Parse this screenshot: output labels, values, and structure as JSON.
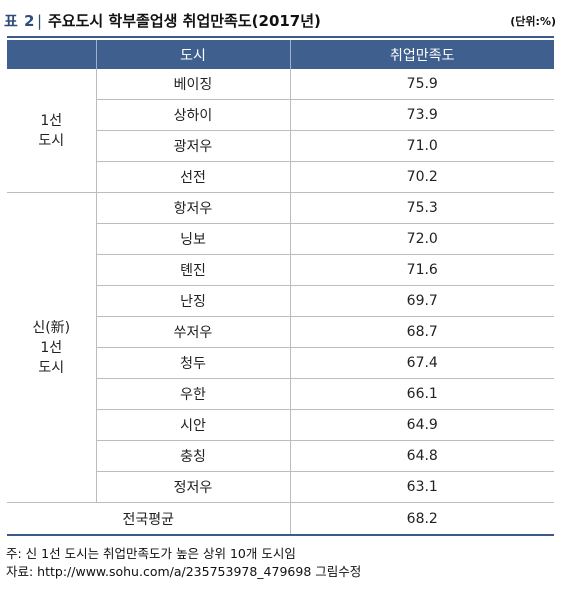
{
  "title": {
    "label": "표 2",
    "separator": "|",
    "text": "주요도시 학부졸업생 취업만족도(2017년)",
    "unit": "(단위:%)"
  },
  "table": {
    "headers": [
      "",
      "도시",
      "취업만족도"
    ],
    "groups": [
      {
        "label_lines": [
          "1선",
          "도시"
        ],
        "rows": [
          {
            "city": "베이징",
            "value": "75.9"
          },
          {
            "city": "상하이",
            "value": "73.9"
          },
          {
            "city": "광저우",
            "value": "71.0"
          },
          {
            "city": "선전",
            "value": "70.2"
          }
        ]
      },
      {
        "label_lines": [
          "신(新)",
          "1선",
          "도시"
        ],
        "rows": [
          {
            "city": "항저우",
            "value": "75.3"
          },
          {
            "city": "닝보",
            "value": "72.0"
          },
          {
            "city": "톈진",
            "value": "71.6"
          },
          {
            "city": "난징",
            "value": "69.7"
          },
          {
            "city": "쑤저우",
            "value": "68.7"
          },
          {
            "city": "청두",
            "value": "67.4"
          },
          {
            "city": "우한",
            "value": "66.1"
          },
          {
            "city": "시안",
            "value": "64.9"
          },
          {
            "city": "충칭",
            "value": "64.8"
          },
          {
            "city": "정저우",
            "value": "63.1"
          }
        ]
      }
    ],
    "total": {
      "label": "전국평균",
      "value": "68.2"
    }
  },
  "notes": {
    "note": "주: 신 1선 도시는 취업만족도가 높은 상위 10개 도시임",
    "source": "자료: http://www.sohu.com/a/235753978_479698 그림수정"
  }
}
